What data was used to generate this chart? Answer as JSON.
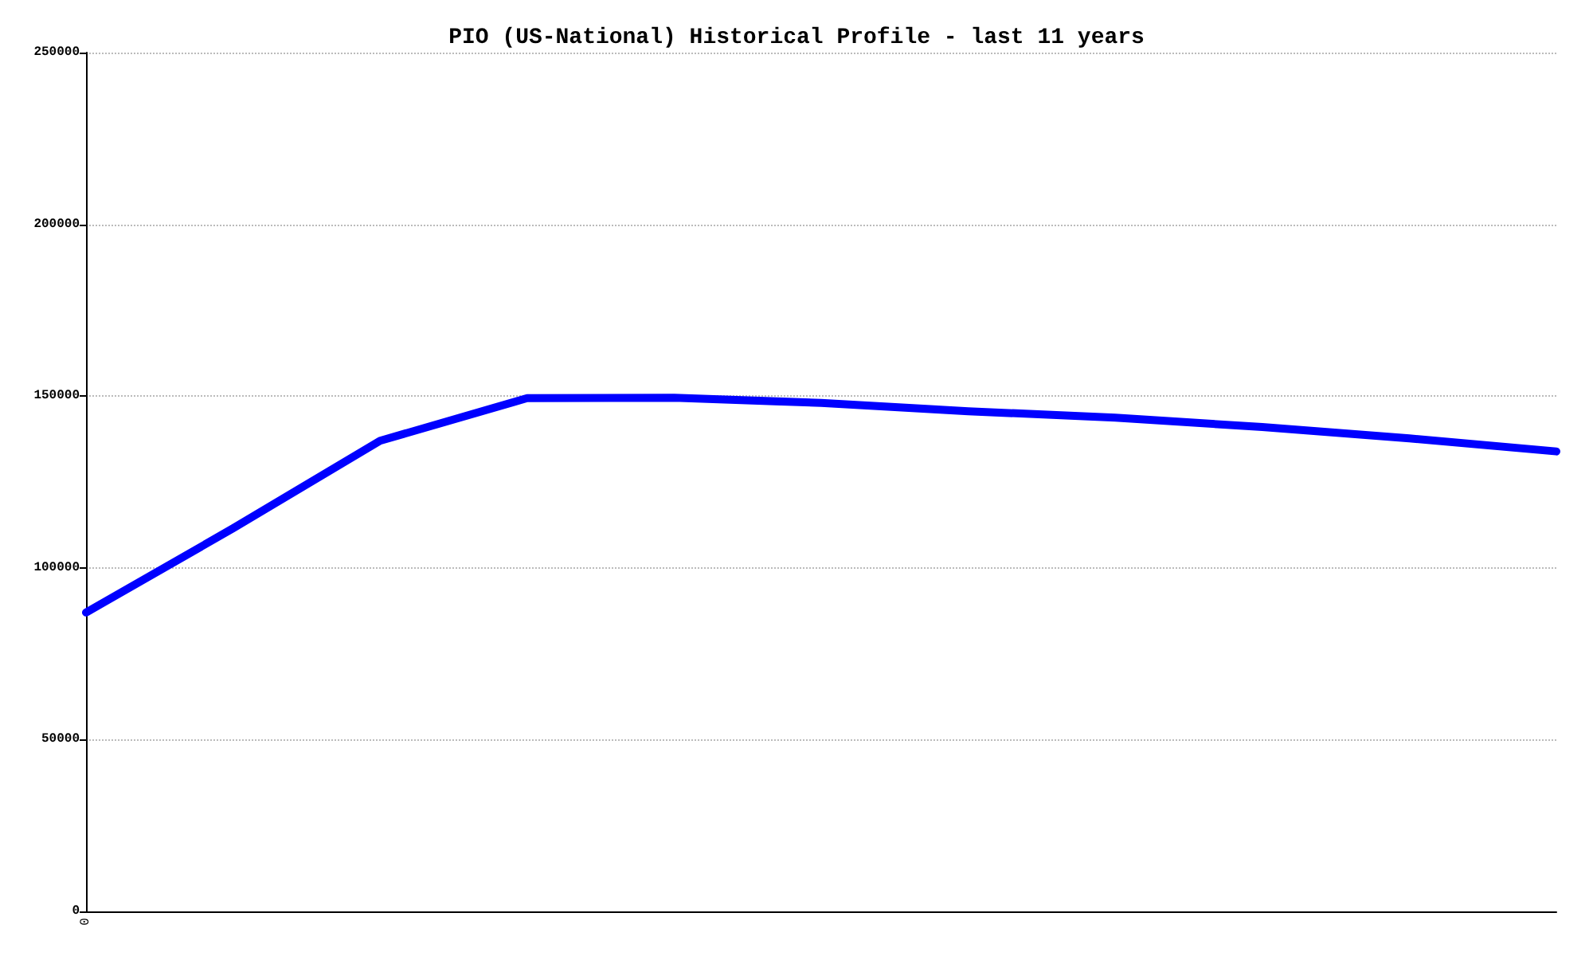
{
  "chart_data": {
    "type": "line",
    "title": "PIO (US-National) Historical Profile - last 11 years",
    "categories": [
      "0",
      null,
      null,
      null,
      null,
      null,
      null,
      null,
      null,
      null,
      null
    ],
    "series": [
      {
        "color": "#0000ff",
        "values": [
          87000,
          111500,
          137000,
          149400,
          149500,
          148000,
          145600,
          143700,
          141000,
          137700,
          133900
        ]
      }
    ],
    "ylim": [
      0,
      250000
    ],
    "yticks": [
      0,
      50000,
      100000,
      150000,
      200000,
      250000
    ],
    "grid": "y",
    "marker": "none",
    "line_style": "solid"
  }
}
